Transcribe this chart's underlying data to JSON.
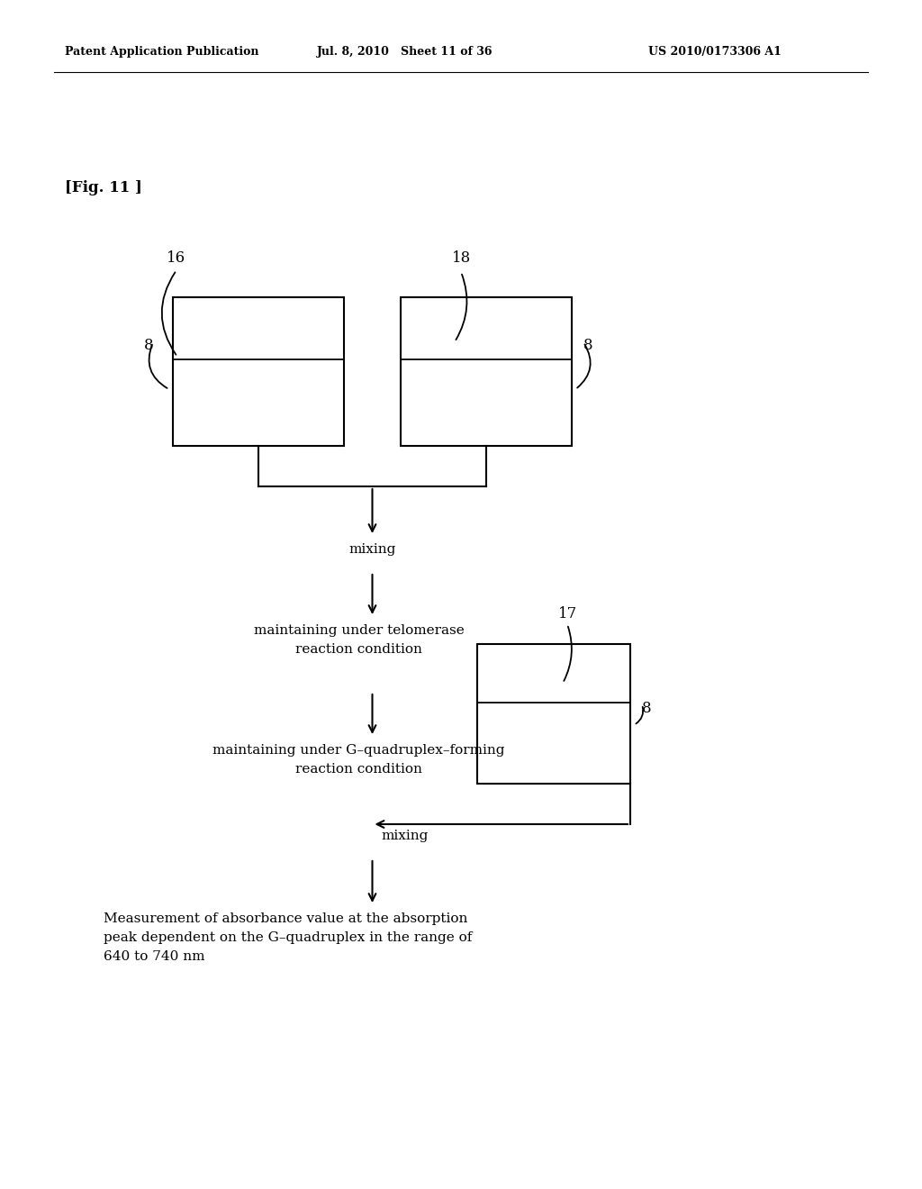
{
  "bg_color": "#ffffff",
  "header_left": "Patent Application Publication",
  "header_mid": "Jul. 8, 2010   Sheet 11 of 36",
  "header_right": "US 2010/0173306 A1",
  "fig_label": "[Fig. 11 ]",
  "box16_label": "16",
  "box18_label": "18",
  "box17_label": "17",
  "text_mixing1": "mixing",
  "text_telomerase": "maintaining under telomerase\nreaction condition",
  "text_gquadruplex": "maintaining under G–quadruplex–forming\nreaction condition",
  "text_mixing2": "mixing",
  "text_measurement": "Measurement of absorbance value at the absorption\npeak dependent on the G–quadruplex in the range of\n640 to 740 nm"
}
